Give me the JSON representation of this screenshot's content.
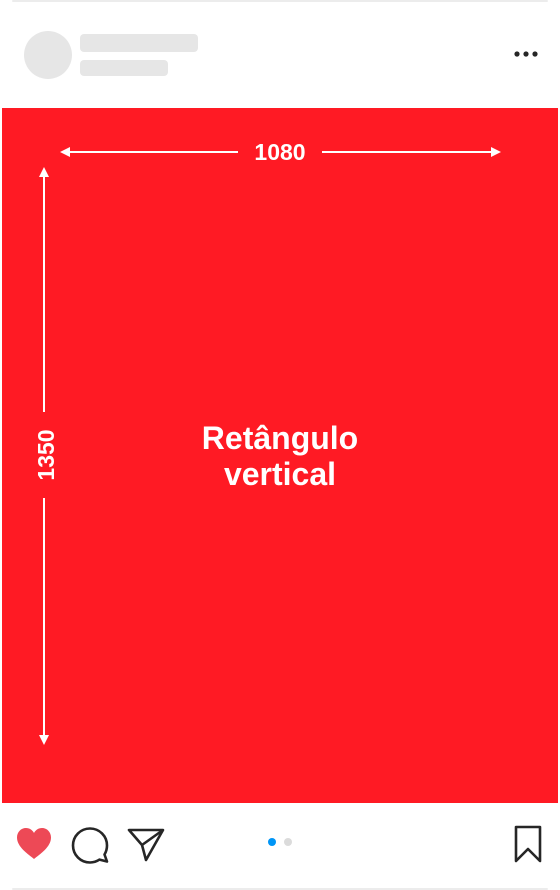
{
  "post": {
    "image": {
      "color": "#ff1a24",
      "width_label": "1080",
      "height_label": "1350",
      "caption_line1": "Retângulo",
      "caption_line2": "vertical"
    },
    "header": {
      "more_icon": "more-horizontal-icon"
    },
    "actions": {
      "like_icon": "heart-icon",
      "like_color": "#ed4956",
      "comment_icon": "comment-icon",
      "share_icon": "send-icon",
      "save_icon": "bookmark-icon"
    },
    "carousel": {
      "total": 2,
      "active_index": 0,
      "active_color": "#0095f6",
      "inactive_color": "#dbdbdb"
    }
  }
}
